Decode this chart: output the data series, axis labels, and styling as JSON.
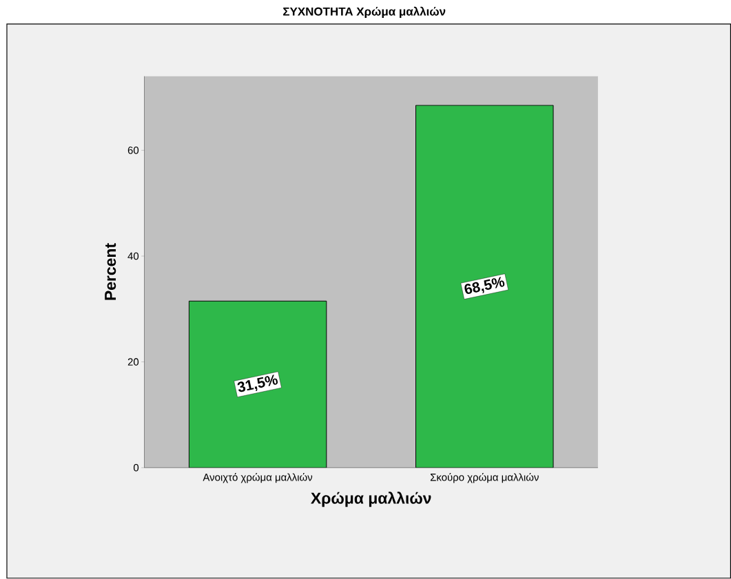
{
  "chart_data": {
    "type": "bar",
    "title": "ΣΥΧΝΟΤΗΤΑ Χρώμα μαλλιών",
    "xlabel": "Χρώμα μαλλιών",
    "ylabel": "Percent",
    "categories": [
      "Ανοιχτό χρώμα μαλλιών",
      "Σκούρο χρώμα μαλλιών"
    ],
    "values": [
      31.5,
      68.5
    ],
    "value_labels": [
      "31,5%",
      "68,5%"
    ],
    "color": "#2eb84a",
    "ylim": [
      0,
      74
    ],
    "yticks": [
      0,
      20,
      40,
      60
    ]
  }
}
